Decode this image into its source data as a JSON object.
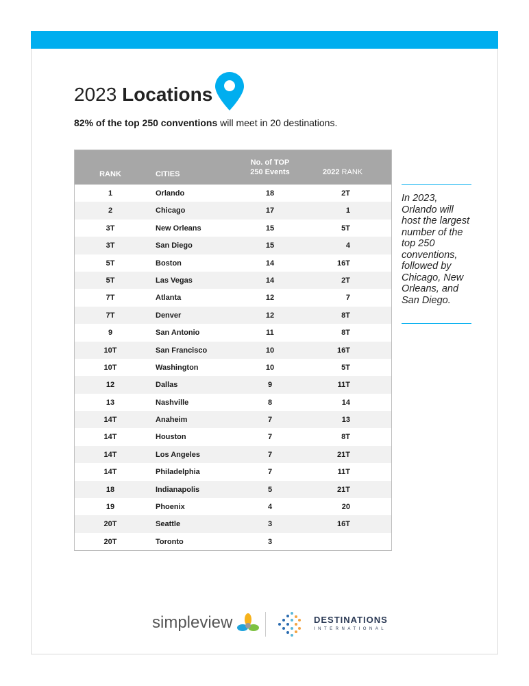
{
  "header": {
    "title_light": "2023",
    "title_bold": "Locations",
    "subtitle_bold": "82% of the top 250 conventions",
    "subtitle_rest": "will meet in 20 destinations.",
    "accent": "#00aeef",
    "pin_icon": "location-pin-icon"
  },
  "table": {
    "headers": {
      "rank": "RANK",
      "cities": "CITIES",
      "events_line1": "No. of TOP",
      "events_line2": "250 Events",
      "prior_bold": "2022",
      "prior_rest": "RANK"
    },
    "rows": [
      {
        "rank": "1",
        "city": "Orlando",
        "events": "18",
        "prior": "2T"
      },
      {
        "rank": "2",
        "city": "Chicago",
        "events": "17",
        "prior": "1"
      },
      {
        "rank": "3T",
        "city": "New Orleans",
        "events": "15",
        "prior": "5T"
      },
      {
        "rank": "3T",
        "city": "San Diego",
        "events": "15",
        "prior": "4"
      },
      {
        "rank": "5T",
        "city": "Boston",
        "events": "14",
        "prior": "16T"
      },
      {
        "rank": "5T",
        "city": "Las Vegas",
        "events": "14",
        "prior": "2T"
      },
      {
        "rank": "7T",
        "city": "Atlanta",
        "events": "12",
        "prior": "7"
      },
      {
        "rank": "7T",
        "city": "Denver",
        "events": "12",
        "prior": "8T"
      },
      {
        "rank": "9",
        "city": "San Antonio",
        "events": "11",
        "prior": "8T"
      },
      {
        "rank": "10T",
        "city": "San Francisco",
        "events": "10",
        "prior": "16T"
      },
      {
        "rank": "10T",
        "city": "Washington",
        "events": "10",
        "prior": "5T"
      },
      {
        "rank": "12",
        "city": "Dallas",
        "events": "9",
        "prior": "11T"
      },
      {
        "rank": "13",
        "city": "Nashville",
        "events": "8",
        "prior": "14"
      },
      {
        "rank": "14T",
        "city": "Anaheim",
        "events": "7",
        "prior": "13"
      },
      {
        "rank": "14T",
        "city": "Houston",
        "events": "7",
        "prior": "8T"
      },
      {
        "rank": "14T",
        "city": "Los Angeles",
        "events": "7",
        "prior": "21T"
      },
      {
        "rank": "14T",
        "city": "Philadelphia",
        "events": "7",
        "prior": "11T"
      },
      {
        "rank": "18",
        "city": "Indianapolis",
        "events": "5",
        "prior": "21T"
      },
      {
        "rank": "19",
        "city": "Phoenix",
        "events": "4",
        "prior": "20"
      },
      {
        "rank": "20T",
        "city": "Seattle",
        "events": "3",
        "prior": "16T"
      },
      {
        "rank": "20T",
        "city": "Toronto",
        "events": "3",
        "prior": ""
      }
    ]
  },
  "sidebar": {
    "note": "In 2023, Orlando will host the largest number of the top 250 conventions, followed by Chicago, New Orleans, and San Diego."
  },
  "footer": {
    "logo1": "simpleview",
    "logo2_line1": "DESTINATIONS",
    "logo2_line2": "INTERNATIONAL"
  }
}
